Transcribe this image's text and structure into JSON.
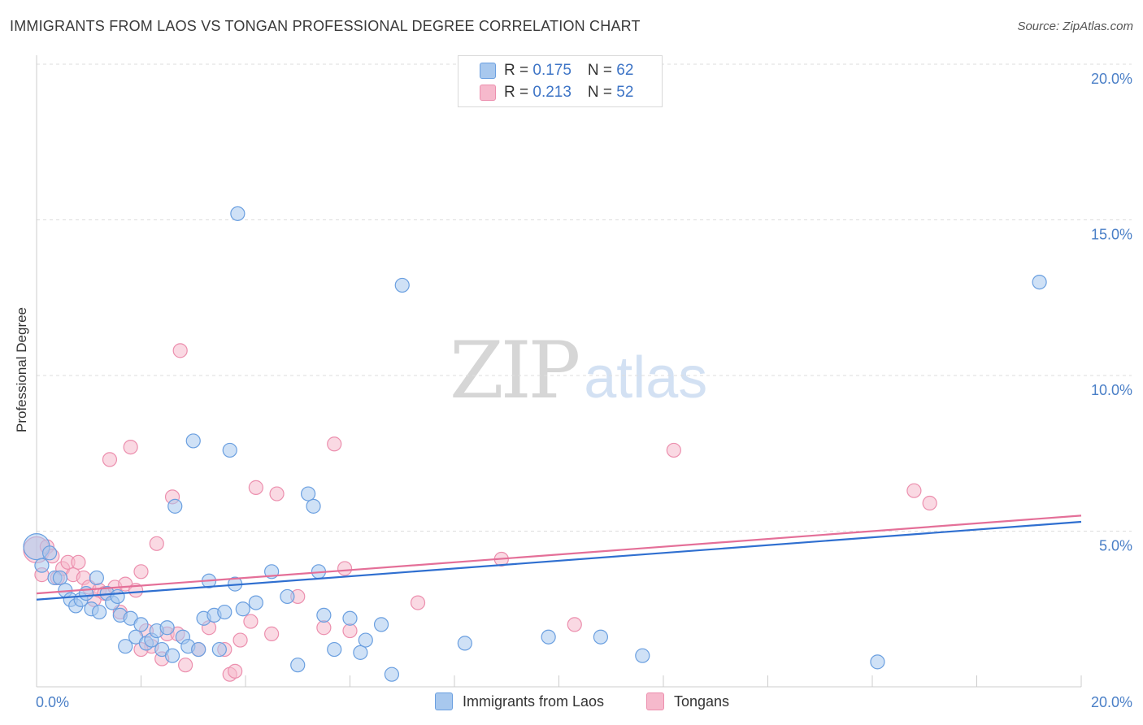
{
  "header": {
    "title": "IMMIGRANTS FROM LAOS VS TONGAN PROFESSIONAL DEGREE CORRELATION CHART",
    "source": "Source: ZipAtlas.com"
  },
  "watermark": {
    "zip": "ZIP",
    "atlas": "atlas"
  },
  "legend_stats": [
    {
      "r_label": "R = ",
      "r_value": "0.175",
      "n_label": "N = ",
      "n_value": "62"
    },
    {
      "r_label": "R = ",
      "r_value": "0.213",
      "n_label": "N = ",
      "n_value": "52"
    }
  ],
  "colors": {
    "blue_fill": "#a8c8ee",
    "blue_stroke": "#6a9fe0",
    "blue_line": "#2f6fd0",
    "pink_fill": "#f6b9cc",
    "pink_stroke": "#ec8fae",
    "pink_line": "#e46f98",
    "grid": "#dddddd",
    "tick_text": "#4a7fc7"
  },
  "chart_data": {
    "type": "scatter",
    "title": "IMMIGRANTS FROM LAOS VS TONGAN PROFESSIONAL DEGREE CORRELATION CHART",
    "xlabel": "",
    "ylabel": "Professional Degree",
    "xlim": [
      0,
      20
    ],
    "ylim": [
      0,
      20
    ],
    "x_ticks": [
      "0.0%",
      "20.0%"
    ],
    "y_ticks": [
      "5.0%",
      "10.0%",
      "15.0%",
      "20.0%"
    ],
    "grid": true,
    "legend_position": "bottom",
    "series": [
      {
        "name": "Immigrants from Laos",
        "r": 0.175,
        "n": 62,
        "trend": {
          "x": [
            0,
            20
          ],
          "y": [
            2.8,
            5.3
          ]
        },
        "points": [
          [
            0.0,
            4.5
          ],
          [
            0.1,
            3.9
          ],
          [
            0.25,
            4.3
          ],
          [
            0.35,
            3.5
          ],
          [
            0.45,
            3.5
          ],
          [
            0.55,
            3.1
          ],
          [
            0.65,
            2.8
          ],
          [
            0.75,
            2.6
          ],
          [
            0.85,
            2.8
          ],
          [
            0.95,
            3.0
          ],
          [
            1.05,
            2.5
          ],
          [
            1.15,
            3.5
          ],
          [
            1.2,
            2.4
          ],
          [
            1.35,
            3.0
          ],
          [
            1.45,
            2.7
          ],
          [
            1.55,
            2.9
          ],
          [
            1.6,
            2.3
          ],
          [
            1.7,
            1.3
          ],
          [
            1.8,
            2.2
          ],
          [
            1.9,
            1.6
          ],
          [
            2.0,
            2.0
          ],
          [
            2.1,
            1.4
          ],
          [
            2.2,
            1.5
          ],
          [
            2.3,
            1.8
          ],
          [
            2.4,
            1.2
          ],
          [
            2.5,
            1.9
          ],
          [
            2.6,
            1.0
          ],
          [
            2.65,
            5.8
          ],
          [
            2.8,
            1.6
          ],
          [
            2.9,
            1.3
          ],
          [
            3.0,
            7.9
          ],
          [
            3.1,
            1.2
          ],
          [
            3.2,
            2.2
          ],
          [
            3.3,
            3.4
          ],
          [
            3.4,
            2.3
          ],
          [
            3.5,
            1.2
          ],
          [
            3.6,
            2.4
          ],
          [
            3.7,
            7.6
          ],
          [
            3.8,
            3.3
          ],
          [
            3.85,
            15.2
          ],
          [
            3.95,
            2.5
          ],
          [
            4.2,
            2.7
          ],
          [
            4.5,
            3.7
          ],
          [
            4.8,
            2.9
          ],
          [
            5.0,
            0.7
          ],
          [
            5.2,
            6.2
          ],
          [
            5.3,
            5.8
          ],
          [
            5.4,
            3.7
          ],
          [
            5.5,
            2.3
          ],
          [
            5.7,
            1.2
          ],
          [
            6.2,
            1.1
          ],
          [
            6.0,
            2.2
          ],
          [
            6.3,
            1.5
          ],
          [
            6.6,
            2.0
          ],
          [
            6.8,
            0.4
          ],
          [
            7.0,
            12.9
          ],
          [
            8.2,
            1.4
          ],
          [
            9.8,
            1.6
          ],
          [
            10.8,
            1.6
          ],
          [
            11.6,
            1.0
          ],
          [
            16.1,
            0.8
          ],
          [
            19.2,
            13.0
          ]
        ]
      },
      {
        "name": "Tongans",
        "r": 0.213,
        "n": 52,
        "trend": {
          "x": [
            0,
            20
          ],
          "y": [
            3.0,
            5.5
          ]
        },
        "points": [
          [
            0.0,
            4.4
          ],
          [
            0.1,
            3.6
          ],
          [
            0.2,
            4.5
          ],
          [
            0.3,
            4.2
          ],
          [
            0.4,
            3.5
          ],
          [
            0.5,
            3.8
          ],
          [
            0.6,
            4.0
          ],
          [
            0.7,
            3.6
          ],
          [
            0.8,
            4.0
          ],
          [
            0.9,
            3.5
          ],
          [
            1.0,
            3.2
          ],
          [
            1.1,
            2.8
          ],
          [
            1.2,
            3.1
          ],
          [
            1.3,
            3.0
          ],
          [
            1.4,
            7.3
          ],
          [
            1.5,
            3.2
          ],
          [
            1.6,
            2.4
          ],
          [
            1.7,
            3.3
          ],
          [
            1.8,
            7.7
          ],
          [
            1.9,
            3.1
          ],
          [
            2.0,
            3.7
          ],
          [
            2.1,
            1.8
          ],
          [
            2.2,
            1.3
          ],
          [
            2.3,
            4.6
          ],
          [
            2.4,
            0.9
          ],
          [
            2.5,
            1.7
          ],
          [
            2.6,
            6.1
          ],
          [
            2.7,
            1.7
          ],
          [
            2.75,
            10.8
          ],
          [
            2.85,
            0.7
          ],
          [
            3.1,
            1.2
          ],
          [
            3.3,
            1.9
          ],
          [
            3.6,
            1.2
          ],
          [
            3.7,
            0.4
          ],
          [
            3.8,
            0.5
          ],
          [
            3.9,
            1.5
          ],
          [
            4.1,
            2.1
          ],
          [
            4.2,
            6.4
          ],
          [
            4.5,
            1.7
          ],
          [
            4.6,
            6.2
          ],
          [
            5.0,
            2.9
          ],
          [
            5.5,
            1.9
          ],
          [
            5.7,
            7.8
          ],
          [
            5.9,
            3.8
          ],
          [
            6.0,
            1.8
          ],
          [
            7.3,
            2.7
          ],
          [
            8.9,
            4.1
          ],
          [
            10.3,
            2.0
          ],
          [
            12.2,
            7.6
          ],
          [
            16.8,
            6.3
          ],
          [
            17.1,
            5.9
          ],
          [
            2.0,
            1.2
          ]
        ]
      }
    ]
  }
}
